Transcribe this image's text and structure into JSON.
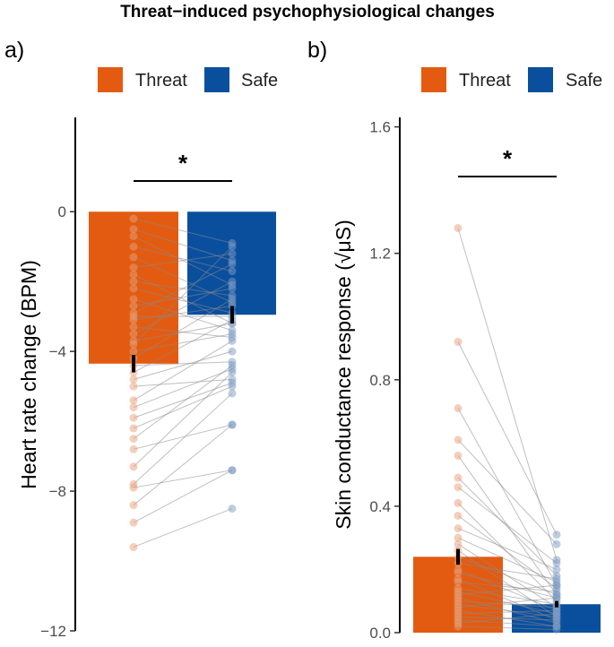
{
  "figure": {
    "title": "Threat−induced psychophysiological changes"
  },
  "chart_data": [
    {
      "type": "bar",
      "panel_label": "a)",
      "title": "",
      "xlabel": "",
      "ylabel": "Heart rate change (BPM)",
      "ylim": [
        -12,
        2.7
      ],
      "yticks": [
        0,
        -4,
        -8,
        -12
      ],
      "ytick_labels": [
        "0",
        "−4",
        "−8",
        "−12"
      ],
      "categories": [
        "Threat",
        "Safe"
      ],
      "series": [
        {
          "name": "Threat",
          "color": "#E35B10",
          "value": -4.35,
          "error": 0.25
        },
        {
          "name": "Safe",
          "color": "#0A4F9E",
          "value": -2.95,
          "error": 0.25
        }
      ],
      "legend": {
        "entries": [
          "Threat",
          "Safe"
        ],
        "position": "top"
      },
      "significance": "*",
      "paired_points": [
        [
          -0.2,
          -0.9
        ],
        [
          -0.5,
          -1.4
        ],
        [
          -0.7,
          -2.1
        ],
        [
          -1.0,
          -1.7
        ],
        [
          -1.3,
          -2.6
        ],
        [
          -1.6,
          -1.2
        ],
        [
          -1.8,
          -3.2
        ],
        [
          -2.0,
          -2.4
        ],
        [
          -2.2,
          -2.9
        ],
        [
          -2.5,
          -3.4
        ],
        [
          -2.7,
          -2.2
        ],
        [
          -2.9,
          -1.5
        ],
        [
          -3.0,
          -3.0
        ],
        [
          -3.1,
          -2.7
        ],
        [
          -3.3,
          -3.6
        ],
        [
          -3.5,
          -2.0
        ],
        [
          -3.7,
          -3.2
        ],
        [
          -3.8,
          -1.0
        ],
        [
          -4.0,
          -3.5
        ],
        [
          -4.2,
          -2.5
        ],
        [
          -4.4,
          -4.3
        ],
        [
          -4.6,
          -3.1
        ],
        [
          -4.8,
          -4.0
        ],
        [
          -5.0,
          -4.8
        ],
        [
          -5.4,
          -3.7
        ],
        [
          -5.6,
          -4.5
        ],
        [
          -5.9,
          -4.9
        ],
        [
          -6.2,
          -5.0
        ],
        [
          -6.5,
          -4.4
        ],
        [
          -6.8,
          -6.1
        ],
        [
          -7.3,
          -4.6
        ],
        [
          -7.8,
          -5.2
        ],
        [
          -7.9,
          -7.4
        ],
        [
          -8.4,
          -6.1
        ],
        [
          -8.9,
          -7.4
        ],
        [
          -9.6,
          -8.5
        ]
      ]
    },
    {
      "type": "bar",
      "panel_label": "b)",
      "title": "",
      "xlabel": "",
      "ylabel": "Skin conductance response (√μS)",
      "ylim": [
        0,
        1.63
      ],
      "yticks": [
        0.0,
        0.4,
        0.8,
        1.2,
        1.6
      ],
      "ytick_labels": [
        "0.0",
        "0.4",
        "0.8",
        "1.2",
        "1.6"
      ],
      "categories": [
        "Threat",
        "Safe"
      ],
      "series": [
        {
          "name": "Threat",
          "color": "#E35B10",
          "value": 0.24,
          "error": 0.025
        },
        {
          "name": "Safe",
          "color": "#0A4F9E",
          "value": 0.09,
          "error": 0.01
        }
      ],
      "legend": {
        "entries": [
          "Threat",
          "Safe"
        ],
        "position": "top"
      },
      "significance": "*",
      "paired_points": [
        [
          1.28,
          0.23
        ],
        [
          0.92,
          0.31
        ],
        [
          0.71,
          0.15
        ],
        [
          0.61,
          0.28
        ],
        [
          0.56,
          0.12
        ],
        [
          0.49,
          0.18
        ],
        [
          0.46,
          0.22
        ],
        [
          0.41,
          0.1
        ],
        [
          0.37,
          0.14
        ],
        [
          0.33,
          0.2
        ],
        [
          0.3,
          0.16
        ],
        [
          0.28,
          0.08
        ],
        [
          0.26,
          0.05
        ],
        [
          0.24,
          0.12
        ],
        [
          0.22,
          0.17
        ],
        [
          0.2,
          0.07
        ],
        [
          0.19,
          0.11
        ],
        [
          0.17,
          0.04
        ],
        [
          0.16,
          0.13
        ],
        [
          0.14,
          0.09
        ],
        [
          0.13,
          0.06
        ],
        [
          0.12,
          0.15
        ],
        [
          0.11,
          0.03
        ],
        [
          0.1,
          0.08
        ],
        [
          0.09,
          0.05
        ],
        [
          0.08,
          0.11
        ],
        [
          0.07,
          0.02
        ],
        [
          0.06,
          0.07
        ],
        [
          0.05,
          0.04
        ],
        [
          0.04,
          0.02
        ],
        [
          0.03,
          0.06
        ],
        [
          0.02,
          0.01
        ]
      ]
    }
  ]
}
